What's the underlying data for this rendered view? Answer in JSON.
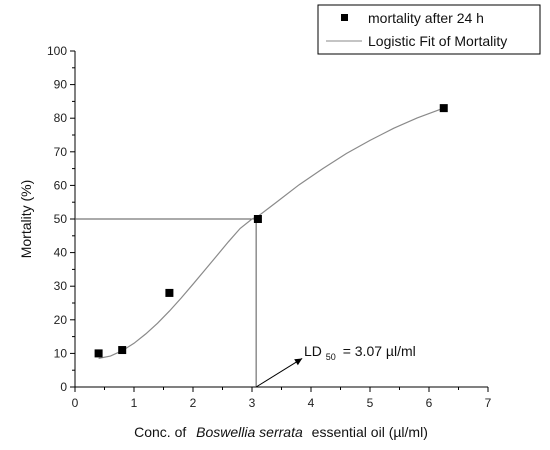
{
  "chart_data": {
    "type": "scatter",
    "title": "",
    "xlabel_prefix": "Conc. of",
    "xlabel_italic": "Boswellia serrata",
    "xlabel_suffix": "essential oil (µl/ml)",
    "ylabel": "Mortality (%)",
    "xlim": [
      0,
      7
    ],
    "ylim": [
      0,
      100
    ],
    "x_ticks": [
      0,
      1,
      2,
      3,
      4,
      5,
      6,
      7
    ],
    "y_ticks": [
      0,
      10,
      20,
      30,
      40,
      50,
      60,
      70,
      80,
      90,
      100
    ],
    "grid": false,
    "legend_position": "top-right",
    "series": [
      {
        "name": "mortality after 24 h",
        "kind": "scatter",
        "color": "#000000",
        "points": [
          {
            "x": 0.4,
            "y": 10
          },
          {
            "x": 0.8,
            "y": 11
          },
          {
            "x": 1.6,
            "y": 28
          },
          {
            "x": 3.1,
            "y": 50
          },
          {
            "x": 6.25,
            "y": 83
          }
        ]
      },
      {
        "name": "Logistic Fit of Mortality",
        "kind": "line",
        "color": "#8a8a8a",
        "x": [
          0.4,
          0.6,
          0.8,
          1.0,
          1.2,
          1.4,
          1.6,
          1.8,
          2.0,
          2.2,
          2.4,
          2.6,
          2.8,
          3.0,
          3.1,
          3.4,
          3.8,
          4.2,
          4.6,
          5.0,
          5.4,
          5.8,
          6.25
        ],
        "y": [
          8.5,
          9.2,
          10.8,
          13.0,
          15.8,
          19.0,
          22.6,
          26.5,
          30.6,
          34.8,
          39.0,
          43.2,
          47.2,
          50.0,
          50.8,
          54.8,
          60.2,
          65.0,
          69.5,
          73.4,
          77.0,
          80.1,
          83.0
        ]
      }
    ],
    "annotation": {
      "prefix": "LD",
      "subscript": "50",
      "suffix": "= 3.07 µl/ml",
      "ld50": 3.07,
      "mortality": 50,
      "arrow_from": {
        "x": 3.85,
        "y": 8.5
      }
    }
  }
}
